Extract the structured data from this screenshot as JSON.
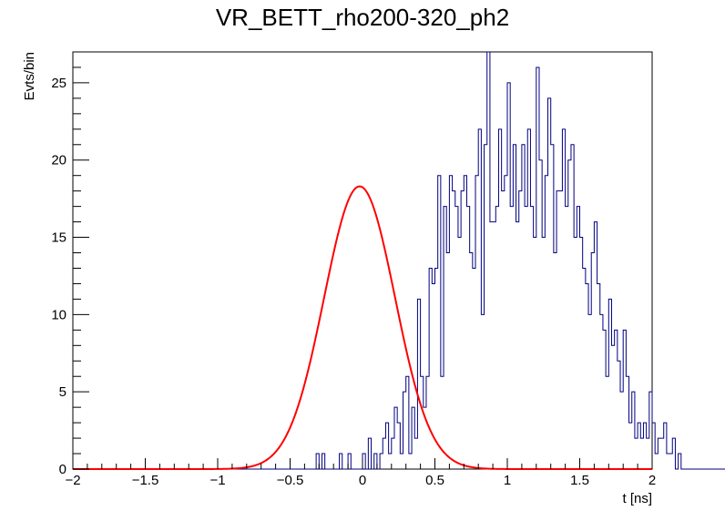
{
  "chart_data": {
    "type": "histogram",
    "title": "VR_BETT_rho200-320_ph2",
    "xlabel": "t [ns]",
    "ylabel": "Evts/bin",
    "xlim": [
      -2,
      2
    ],
    "ylim": [
      0,
      27
    ],
    "x_ticks": [
      "−2",
      "−1.5",
      "−1",
      "−0.5",
      "0",
      "0.5",
      "1",
      "1.5",
      "2"
    ],
    "y_ticks": [
      "0",
      "5",
      "10",
      "15",
      "20",
      "25"
    ],
    "bin_width": 0.02,
    "hist_color": "#000080",
    "fit_color": "#ff0000",
    "histogram": {
      "bin_edges_start": -2,
      "values": [
        0,
        0,
        0,
        0,
        0,
        0,
        0,
        0,
        0,
        0,
        0,
        0,
        0,
        0,
        0,
        0,
        0,
        0,
        0,
        0,
        0,
        0,
        0,
        0,
        0,
        0,
        0,
        0,
        0,
        0,
        0,
        0,
        0,
        0,
        0,
        0,
        0,
        0,
        0,
        0,
        0,
        0,
        0,
        0,
        0,
        0,
        0,
        0,
        0,
        0,
        0,
        0,
        0,
        0,
        0,
        0,
        0,
        0,
        0,
        0,
        0,
        0,
        0,
        0,
        0,
        0,
        0,
        0,
        0,
        0,
        0,
        0,
        0,
        0,
        0,
        0,
        0,
        0,
        0,
        0,
        0,
        0,
        0,
        0,
        1,
        0,
        1,
        0,
        0,
        0,
        0,
        0,
        1,
        0,
        0,
        1,
        0,
        0,
        0,
        0,
        1,
        0,
        2,
        0,
        1,
        0,
        1,
        2,
        3,
        1,
        2,
        4,
        3,
        1,
        5,
        6,
        1,
        4,
        2,
        11,
        6,
        4,
        6,
        13,
        12,
        13,
        19,
        6,
        17,
        14,
        19,
        18,
        17,
        15,
        18,
        19,
        17,
        14,
        13,
        19,
        22,
        10,
        21,
        28,
        16,
        16,
        17,
        22,
        18,
        19,
        25,
        17,
        21,
        16,
        18,
        21,
        17,
        22,
        17,
        15,
        26,
        20,
        15,
        19,
        24,
        21,
        14,
        18,
        18,
        22,
        17,
        20,
        21,
        15,
        17,
        15,
        13,
        12,
        10,
        14,
        16,
        12,
        10,
        9,
        6,
        11,
        8,
        9,
        7,
        5,
        9,
        6,
        3,
        5,
        2,
        3,
        2,
        3,
        2,
        5,
        3,
        1,
        2,
        2,
        3,
        1,
        1,
        2,
        0,
        1,
        0,
        0,
        0,
        0,
        0,
        0,
        0,
        0,
        0,
        0,
        0,
        0,
        0,
        0,
        0,
        0,
        0,
        0,
        0,
        0,
        0,
        0,
        0,
        0,
        0,
        0,
        0,
        0,
        0,
        0,
        0,
        0,
        0,
        0,
        0,
        0,
        0,
        0,
        0,
        0,
        0,
        0,
        0,
        0,
        0,
        0,
        0,
        0,
        0,
        0
      ]
    },
    "fit": {
      "function": "gaus",
      "amplitude": 18.3,
      "mean": -0.02,
      "sigma": 0.245
    }
  }
}
